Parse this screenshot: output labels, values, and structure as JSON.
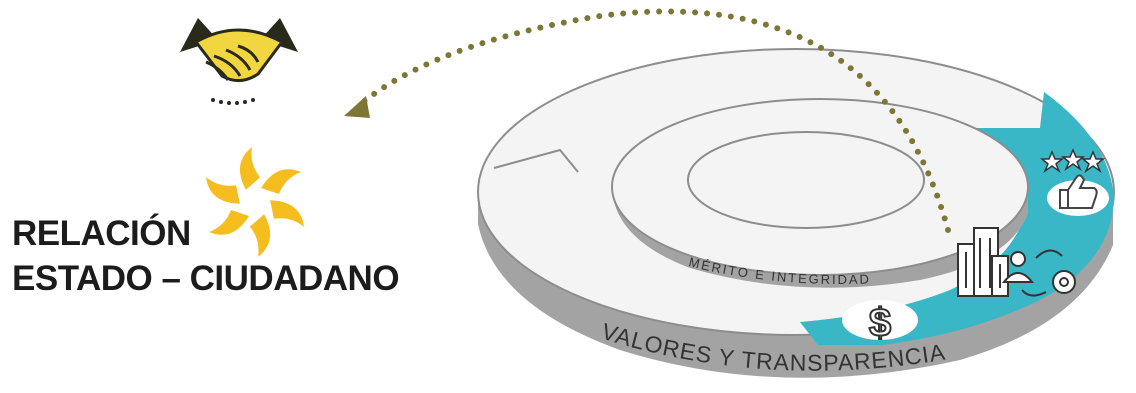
{
  "title": {
    "line1": "RELACIÓN",
    "line2": "ESTADO – CIUDADANO"
  },
  "rings": {
    "inner_label": "MÉRITO E INTEGRIDAD",
    "outer_label": "VALORES Y TRANSPARENCIA"
  },
  "icons": {
    "handshake": "handshake-icon",
    "sun_logo": "sun-logo-icon",
    "stars": "three-stars-icon",
    "thumbs_up": "thumbs-up-icon",
    "building": "building-icon",
    "person_gear": "person-gear-icon",
    "dollar": "dollar-icon",
    "arrow": "dotted-arrow"
  },
  "colors": {
    "teal_band": "#39b7c6",
    "ring_top": "#f4f4f4",
    "ring_side": "#a3a3a3",
    "ring_outline": "#8d8d8d",
    "logo_yellow": "#f5bd1e",
    "handshake_yellow": "#f2d640",
    "handshake_dark": "#2a2a1c",
    "dotted_arrow": "#7d7634",
    "title_text": "#1c1c1c"
  }
}
